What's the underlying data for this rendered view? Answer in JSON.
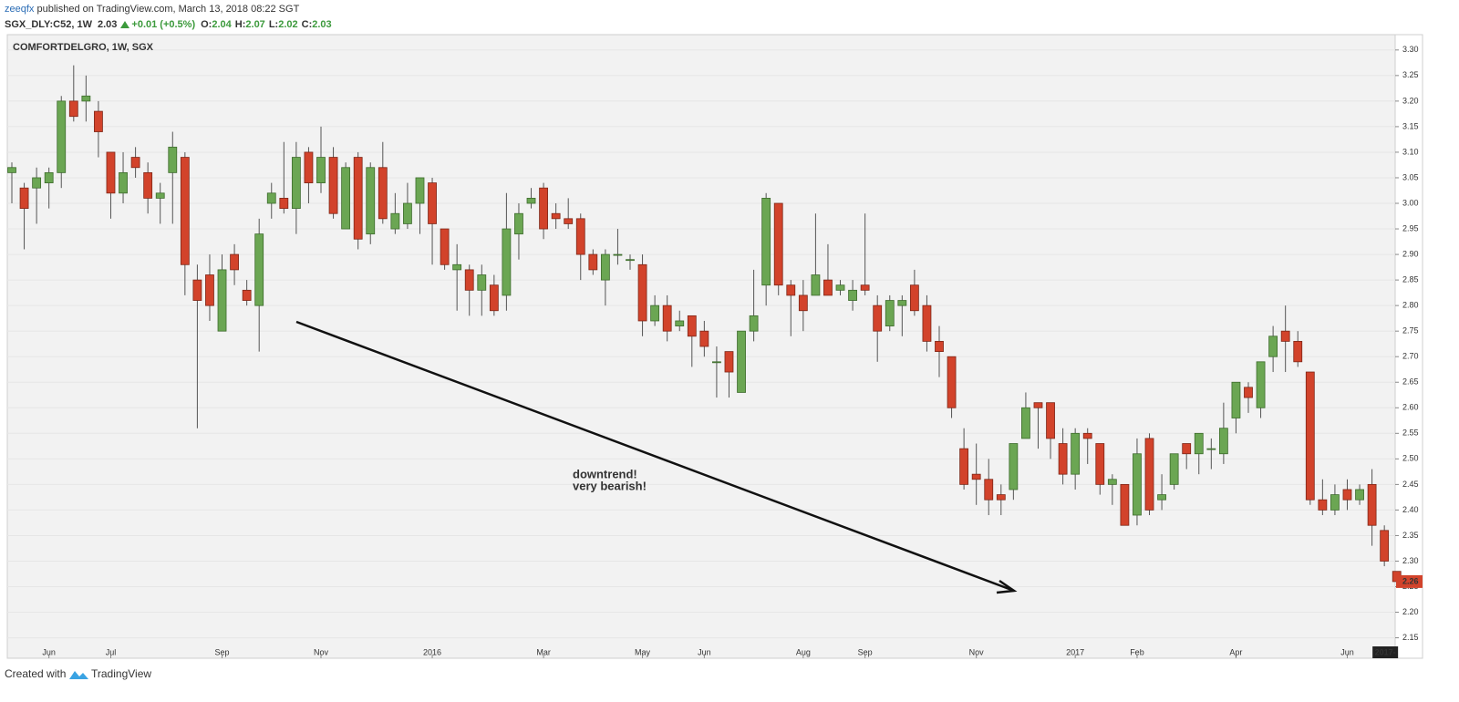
{
  "header": {
    "author": "zeeqfx",
    "published": "published on TradingView.com, March 13, 2018 08:22 SGT",
    "symbol": "SGX_DLY:C52, 1W",
    "last": "2.03",
    "change": "+0.01 (+0.5%)",
    "ohlc": [
      {
        "label": "O:",
        "value": "2.04"
      },
      {
        "label": "H:",
        "value": "2.07"
      },
      {
        "label": "L:",
        "value": "2.02"
      },
      {
        "label": "C:",
        "value": "2.03"
      }
    ]
  },
  "footer": {
    "created": "Created with",
    "brand": "TradingView"
  },
  "chart_data": {
    "type": "candlestick",
    "title": "COMFORTDELGRO, 1W, SGX",
    "annotation": [
      "downtrend!",
      "very bearish!"
    ],
    "categories": [
      null,
      null,
      null,
      "Jun",
      null,
      null,
      null,
      null,
      "Jul",
      null,
      null,
      null,
      null,
      null,
      null,
      null,
      null,
      "Sep",
      null,
      null,
      null,
      null,
      null,
      null,
      null,
      "Nov",
      null,
      null,
      null,
      null,
      null,
      null,
      null,
      null,
      "2016",
      null,
      null,
      null,
      null,
      null,
      null,
      null,
      null,
      "Mar",
      null,
      null,
      null,
      null,
      null,
      null,
      null,
      "May",
      null,
      null,
      null,
      null,
      "Jun",
      null,
      null,
      null,
      null,
      null,
      null,
      null,
      "Aug",
      null,
      null,
      null,
      null,
      "Sep",
      null,
      null,
      null,
      null,
      null,
      null,
      null,
      null,
      "Nov",
      null,
      null,
      null,
      null,
      null,
      null,
      null,
      "2017",
      null,
      null,
      null,
      null,
      "Feb",
      null,
      null,
      null,
      null,
      null,
      null,
      null,
      "Apr",
      null,
      null,
      null,
      null,
      null,
      null,
      null,
      null,
      "Jun",
      null,
      null,
      null,
      null
    ],
    "open": [
      3.06,
      3.03,
      3.03,
      3.04,
      3.06,
      3.2,
      3.2,
      3.18,
      3.1,
      3.02,
      3.09,
      3.06,
      3.01,
      3.06,
      3.09,
      2.85,
      2.86,
      2.75,
      2.9,
      2.83,
      2.8,
      3.0,
      3.01,
      2.99,
      3.1,
      3.04,
      3.09,
      2.95,
      3.09,
      2.94,
      3.07,
      2.95,
      2.96,
      3.0,
      3.04,
      2.95,
      2.87,
      2.87,
      2.83,
      2.84,
      2.82,
      2.94,
      3.0,
      3.03,
      2.98,
      2.97,
      2.97,
      2.9,
      2.85,
      2.9,
      2.89,
      2.88,
      2.77,
      2.8,
      2.76,
      2.78,
      2.75,
      2.69,
      2.71,
      2.63,
      2.75,
      2.84,
      3.0,
      2.84,
      2.82,
      2.82,
      2.85,
      2.83,
      2.81,
      2.84,
      2.8,
      2.76,
      2.8,
      2.84,
      2.8,
      2.73,
      2.7,
      2.52,
      2.47,
      2.46,
      2.43,
      2.44,
      2.54,
      2.61,
      2.61,
      2.53,
      2.47,
      2.55,
      2.53,
      2.45,
      2.45,
      2.39,
      2.54,
      2.42,
      2.45,
      2.53,
      2.51,
      2.52,
      2.51,
      2.58,
      2.64,
      2.6,
      2.7,
      2.75,
      2.73,
      2.67,
      2.42,
      2.4,
      2.44,
      2.42,
      2.45,
      2.36,
      2.28
    ],
    "high": [
      3.08,
      3.04,
      3.07,
      3.07,
      3.21,
      3.27,
      3.25,
      3.2,
      3.1,
      3.1,
      3.11,
      3.08,
      3.04,
      3.14,
      3.1,
      2.88,
      2.9,
      2.9,
      2.92,
      2.85,
      2.97,
      3.04,
      3.12,
      3.12,
      3.11,
      3.15,
      3.11,
      3.08,
      3.1,
      3.08,
      3.12,
      3.02,
      3.04,
      3.05,
      3.05,
      2.95,
      2.92,
      2.88,
      2.88,
      2.86,
      3.02,
      3.0,
      3.03,
      3.04,
      3.0,
      3.01,
      2.98,
      2.91,
      2.91,
      2.95,
      2.9,
      2.9,
      2.82,
      2.82,
      2.79,
      2.78,
      2.77,
      2.72,
      2.71,
      2.75,
      2.87,
      3.02,
      3.0,
      2.85,
      2.85,
      2.98,
      2.92,
      2.85,
      2.85,
      2.98,
      2.82,
      2.82,
      2.82,
      2.87,
      2.82,
      2.76,
      2.7,
      2.56,
      2.53,
      2.5,
      2.45,
      2.53,
      2.63,
      2.61,
      2.61,
      2.56,
      2.56,
      2.56,
      2.53,
      2.47,
      2.45,
      2.54,
      2.55,
      2.47,
      2.51,
      2.53,
      2.55,
      2.54,
      2.61,
      2.65,
      2.65,
      2.69,
      2.76,
      2.8,
      2.75,
      2.67,
      2.46,
      2.45,
      2.46,
      2.45,
      2.48,
      2.37,
      2.28
    ],
    "low": [
      3.0,
      2.91,
      2.96,
      2.99,
      3.03,
      3.16,
      3.16,
      3.09,
      2.97,
      3.0,
      3.05,
      2.98,
      2.96,
      2.96,
      2.82,
      2.56,
      2.77,
      2.75,
      2.84,
      2.8,
      2.71,
      2.97,
      2.98,
      2.94,
      3.0,
      3.02,
      2.97,
      2.95,
      2.91,
      2.92,
      2.96,
      2.94,
      2.95,
      2.94,
      2.88,
      2.87,
      2.79,
      2.78,
      2.78,
      2.78,
      2.79,
      2.89,
      2.99,
      2.93,
      2.95,
      2.95,
      2.85,
      2.86,
      2.8,
      2.88,
      2.87,
      2.74,
      2.76,
      2.73,
      2.75,
      2.68,
      2.7,
      2.62,
      2.62,
      2.63,
      2.73,
      2.8,
      2.82,
      2.74,
      2.75,
      2.82,
      2.82,
      2.82,
      2.79,
      2.82,
      2.69,
      2.75,
      2.74,
      2.78,
      2.71,
      2.66,
      2.58,
      2.44,
      2.41,
      2.39,
      2.39,
      2.42,
      2.54,
      2.52,
      2.5,
      2.45,
      2.44,
      2.49,
      2.43,
      2.41,
      2.37,
      2.37,
      2.39,
      2.4,
      2.44,
      2.48,
      2.47,
      2.48,
      2.49,
      2.55,
      2.59,
      2.58,
      2.67,
      2.67,
      2.68,
      2.41,
      2.39,
      2.39,
      2.4,
      2.41,
      2.33,
      2.29,
      2.25
    ],
    "close": [
      3.07,
      2.99,
      3.05,
      3.06,
      3.2,
      3.17,
      3.21,
      3.14,
      3.02,
      3.06,
      3.07,
      3.01,
      3.02,
      3.11,
      2.88,
      2.81,
      2.8,
      2.87,
      2.87,
      2.81,
      2.94,
      3.02,
      2.99,
      3.09,
      3.04,
      3.09,
      2.98,
      3.07,
      2.93,
      3.07,
      2.97,
      2.98,
      3.0,
      3.05,
      2.96,
      2.88,
      2.88,
      2.83,
      2.86,
      2.79,
      2.95,
      2.98,
      3.01,
      2.95,
      2.97,
      2.96,
      2.9,
      2.87,
      2.9,
      2.9,
      2.89,
      2.77,
      2.8,
      2.75,
      2.77,
      2.74,
      2.72,
      2.69,
      2.67,
      2.75,
      2.78,
      3.01,
      2.84,
      2.82,
      2.79,
      2.86,
      2.82,
      2.84,
      2.83,
      2.83,
      2.75,
      2.81,
      2.81,
      2.79,
      2.73,
      2.71,
      2.6,
      2.45,
      2.46,
      2.42,
      2.42,
      2.53,
      2.6,
      2.6,
      2.54,
      2.47,
      2.55,
      2.54,
      2.45,
      2.46,
      2.37,
      2.51,
      2.4,
      2.43,
      2.51,
      2.51,
      2.55,
      2.52,
      2.56,
      2.65,
      2.62,
      2.69,
      2.74,
      2.73,
      2.69,
      2.42,
      2.4,
      2.43,
      2.42,
      2.44,
      2.37,
      2.3,
      2.26
    ],
    "up_color": "#6ba653",
    "down_color": "#d2432b",
    "last_price": 2.26,
    "cursor_label": "2017-",
    "ylim": [
      2.11,
      3.33
    ],
    "yticks": [
      {
        "value": 3.3,
        "label": "3.30"
      },
      3.25,
      {
        "value": 3.2,
        "label": "3.20"
      },
      3.15,
      {
        "value": 3.1,
        "label": "3.10"
      },
      3.05,
      {
        "value": 3.0,
        "label": "3.00"
      },
      2.95,
      {
        "value": 2.9,
        "label": "2.90"
      },
      2.85,
      {
        "value": 2.8,
        "label": "2.80"
      },
      2.75,
      {
        "value": 2.7,
        "label": "2.70"
      },
      2.65,
      {
        "value": 2.6,
        "label": "2.60"
      },
      2.55,
      {
        "value": 2.5,
        "label": "2.50"
      },
      2.45,
      {
        "value": 2.4,
        "label": "2.40"
      },
      2.35,
      {
        "value": 2.3,
        "label": "2.30"
      },
      2.25,
      {
        "value": 2.2,
        "label": "2.20"
      },
      2.15
    ],
    "grid": true
  }
}
